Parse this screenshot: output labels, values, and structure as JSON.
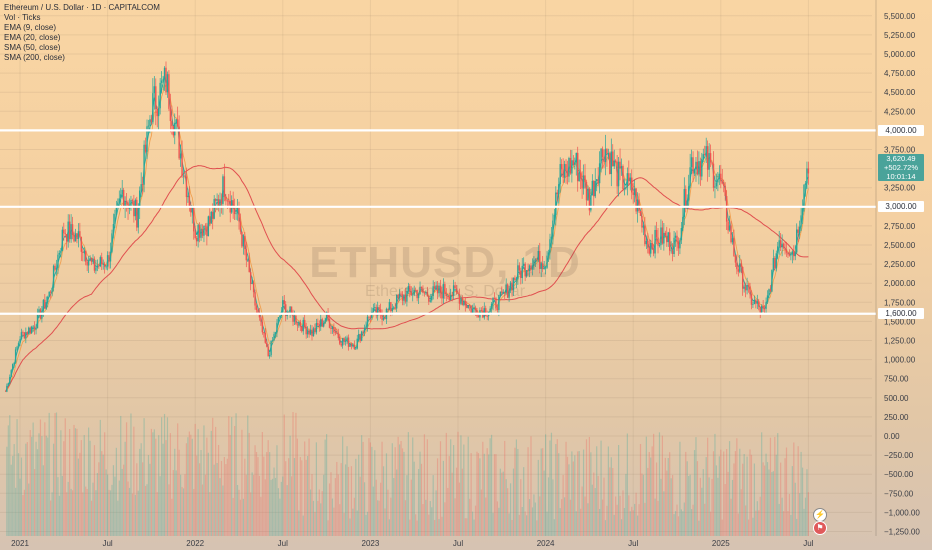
{
  "legend": {
    "title": "Ethereum / U.S. Dollar · 1D · CAPITALCOM",
    "lines": [
      "Vol · Ticks",
      "EMA (9, close)",
      "EMA (20, close)",
      "SMA (50, close)",
      "SMA (200, close)"
    ]
  },
  "watermark": {
    "symbol": "ETHUSD, 1D",
    "name": "Ethereum / U.S. Dollar"
  },
  "current_price": {
    "price": "3,620.49",
    "change": "+502.72%",
    "countdown": "10:01:14"
  },
  "price_boxes": [
    "4,000.00",
    "3,000.00",
    "1,600.00"
  ],
  "icons": {
    "flag": "flag-icon",
    "lightning": "lightning-icon"
  },
  "colors": {
    "up": "#26a69a",
    "down": "#ef5350",
    "ema9": "#26a69a",
    "ema20": "#f0a050",
    "sma200": "#e05050",
    "hline": "#ffffff",
    "price_badge": "#4aa39a"
  },
  "chart_data": {
    "type": "candlestick",
    "title": "Ethereum / U.S. Dollar · 1D · CAPITALCOM",
    "xlabel": "",
    "ylabel": "",
    "x_ticks": [
      "2021",
      "Jul",
      "2022",
      "Jul",
      "2023",
      "Jul",
      "2024",
      "Jul",
      "2025",
      "Jul"
    ],
    "y_ticks": [
      5500,
      5250,
      5000,
      4750,
      4500,
      4250,
      4000,
      3750,
      3500,
      3250,
      3000,
      2750,
      2500,
      2250,
      2000,
      1750,
      1500,
      1250,
      1000,
      750,
      500,
      250,
      0,
      -250,
      -500,
      -750,
      -1000,
      -1250
    ],
    "y_tick_labels": [
      "5,500.00",
      "5,250.00",
      "5,000.00",
      "4,750.00",
      "4,500.00",
      "4,250.00",
      "4,000.00",
      "3,750.00",
      "3,500.00",
      "3,250.00",
      "3,000.00",
      "2,750.00",
      "2,500.00",
      "2,250.00",
      "2,000.00",
      "1,750.00",
      "1,500.00",
      "1,250.00",
      "1,000.00",
      "750.00",
      "500.00",
      "250.00",
      "0.00",
      "−250.00",
      "−500.00",
      "−750.00",
      "−1,000.00",
      "−1,250.00"
    ],
    "ylim": [
      -1300,
      5600
    ],
    "horizontal_lines": [
      4000,
      3000,
      1600
    ],
    "close_series": {
      "x": [
        "2020-12",
        "2021-01",
        "2021-02",
        "2021-03",
        "2021-04",
        "2021-05",
        "2021-06",
        "2021-07",
        "2021-08",
        "2021-09",
        "2021-10",
        "2021-11",
        "2021-12",
        "2022-01",
        "2022-02",
        "2022-03",
        "2022-04",
        "2022-05",
        "2022-06",
        "2022-07",
        "2022-08",
        "2022-09",
        "2022-10",
        "2022-11",
        "2022-12",
        "2023-01",
        "2023-02",
        "2023-03",
        "2023-04",
        "2023-05",
        "2023-06",
        "2023-07",
        "2023-08",
        "2023-09",
        "2023-10",
        "2023-11",
        "2023-12",
        "2024-01",
        "2024-02",
        "2024-03",
        "2024-04",
        "2024-05",
        "2024-06",
        "2024-07",
        "2024-08",
        "2024-09",
        "2024-10",
        "2024-11",
        "2024-12",
        "2025-01",
        "2025-02",
        "2025-03",
        "2025-04",
        "2025-05",
        "2025-06",
        "2025-07"
      ],
      "values": [
        580,
        1300,
        1450,
        1850,
        2700,
        2600,
        2200,
        2300,
        3200,
        2900,
        4300,
        4650,
        3700,
        2700,
        2800,
        3300,
        2800,
        1800,
        1050,
        1700,
        1500,
        1350,
        1550,
        1250,
        1200,
        1600,
        1600,
        1800,
        1900,
        1850,
        1900,
        1850,
        1650,
        1650,
        1800,
        2100,
        2300,
        2300,
        3400,
        3600,
        3100,
        3800,
        3400,
        3200,
        2500,
        2600,
        2500,
        3600,
        3600,
        3300,
        2300,
        1800,
        1600,
        2600,
        2400,
        3620
      ]
    },
    "volume_axis_note": "volume histogram in lower panel, red/green bars",
    "current": {
      "price": 3620.49,
      "change_pct": "+502.72%",
      "countdown": "10:01:14"
    }
  }
}
